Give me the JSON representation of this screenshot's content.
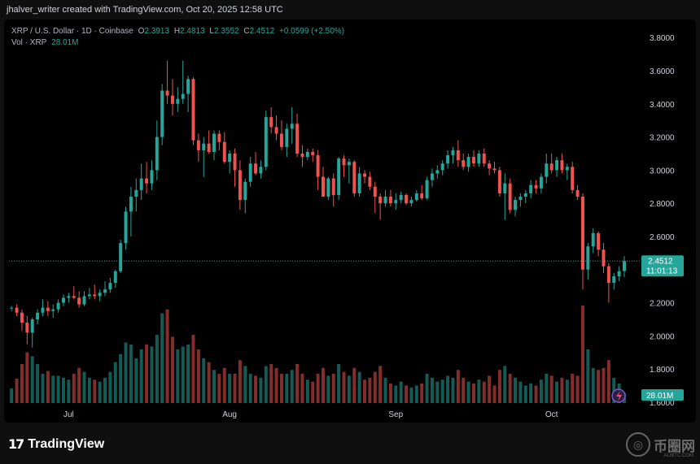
{
  "header": {
    "creator_text": "jhalver_writer created with TradingView.com, Oct 20, 2025 12:58 UTC"
  },
  "legend": {
    "symbol": "XRP / U.S. Dollar · 1D · Coinbase",
    "open_label": "O",
    "open": "2.3913",
    "high_label": "H",
    "high": "2.4813",
    "low_label": "L",
    "low": "2.3552",
    "close_label": "C",
    "close": "2.4512",
    "change": "+0.0599 (+2.50%)",
    "vol_label": "Vol · XRP",
    "vol_value": "28.01M"
  },
  "price_tag": {
    "price": "2.4512",
    "countdown": "11:01:13"
  },
  "volume_tag": "28.01M",
  "footer": {
    "logo_text": "TradingView",
    "watermark": "币圈网",
    "watermark_sub": "ALIBTC.COM"
  },
  "colors": {
    "up": "#26a69a",
    "down": "#ef5350",
    "background": "#000000",
    "text": "#d1d4dc"
  },
  "icons": {
    "logo": "tradingview-logo-icon",
    "event": "lightning-event-icon",
    "watermark": "watermark-logo-icon"
  },
  "chart_data": {
    "type": "candlestick",
    "title": "XRP / U.S. Dollar · 1D · Coinbase",
    "y_axis": {
      "ticks": [
        "3.8000",
        "3.6000",
        "3.4000",
        "3.2000",
        "3.0000",
        "2.8000",
        "2.6000",
        "2.4000",
        "2.2000",
        "2.0000",
        "1.8000",
        "1.6000"
      ],
      "range": [
        1.58,
        3.86
      ],
      "position": "right"
    },
    "x_axis": {
      "ticks": [
        {
          "label": "Jul",
          "index": 11
        },
        {
          "label": "Aug",
          "index": 42
        },
        {
          "label": "Sep",
          "index": 74
        },
        {
          "label": "Oct",
          "index": 104
        }
      ]
    },
    "grid": false,
    "current_price_line": 2.4512,
    "candles": [
      {
        "o": 2.17,
        "h": 2.18,
        "l": 2.15,
        "c": 2.17,
        "v": 0.15
      },
      {
        "o": 2.17,
        "h": 2.19,
        "l": 2.12,
        "c": 2.14,
        "v": 0.25
      },
      {
        "o": 2.14,
        "h": 2.16,
        "l": 2.03,
        "c": 2.08,
        "v": 0.4
      },
      {
        "o": 2.08,
        "h": 2.12,
        "l": 1.95,
        "c": 2.02,
        "v": 0.52
      },
      {
        "o": 2.02,
        "h": 2.11,
        "l": 1.93,
        "c": 2.1,
        "v": 0.48
      },
      {
        "o": 2.1,
        "h": 2.16,
        "l": 2.07,
        "c": 2.14,
        "v": 0.4
      },
      {
        "o": 2.14,
        "h": 2.22,
        "l": 2.12,
        "c": 2.17,
        "v": 0.3
      },
      {
        "o": 2.17,
        "h": 2.21,
        "l": 2.12,
        "c": 2.15,
        "v": 0.33
      },
      {
        "o": 2.15,
        "h": 2.19,
        "l": 2.11,
        "c": 2.16,
        "v": 0.28
      },
      {
        "o": 2.16,
        "h": 2.22,
        "l": 2.14,
        "c": 2.2,
        "v": 0.28
      },
      {
        "o": 2.2,
        "h": 2.25,
        "l": 2.18,
        "c": 2.23,
        "v": 0.26
      },
      {
        "o": 2.23,
        "h": 2.26,
        "l": 2.2,
        "c": 2.24,
        "v": 0.24
      },
      {
        "o": 2.24,
        "h": 2.3,
        "l": 2.22,
        "c": 2.23,
        "v": 0.3
      },
      {
        "o": 2.23,
        "h": 2.27,
        "l": 2.17,
        "c": 2.19,
        "v": 0.36
      },
      {
        "o": 2.19,
        "h": 2.27,
        "l": 2.18,
        "c": 2.24,
        "v": 0.32
      },
      {
        "o": 2.24,
        "h": 2.29,
        "l": 2.22,
        "c": 2.25,
        "v": 0.26
      },
      {
        "o": 2.25,
        "h": 2.31,
        "l": 2.22,
        "c": 2.24,
        "v": 0.24
      },
      {
        "o": 2.24,
        "h": 2.28,
        "l": 2.21,
        "c": 2.26,
        "v": 0.22
      },
      {
        "o": 2.26,
        "h": 2.33,
        "l": 2.24,
        "c": 2.28,
        "v": 0.26
      },
      {
        "o": 2.28,
        "h": 2.35,
        "l": 2.26,
        "c": 2.32,
        "v": 0.32
      },
      {
        "o": 2.32,
        "h": 2.4,
        "l": 2.29,
        "c": 2.39,
        "v": 0.42
      },
      {
        "o": 2.39,
        "h": 2.58,
        "l": 2.38,
        "c": 2.56,
        "v": 0.5
      },
      {
        "o": 2.56,
        "h": 2.78,
        "l": 2.52,
        "c": 2.75,
        "v": 0.62
      },
      {
        "o": 2.75,
        "h": 2.9,
        "l": 2.6,
        "c": 2.84,
        "v": 0.6
      },
      {
        "o": 2.84,
        "h": 2.95,
        "l": 2.75,
        "c": 2.88,
        "v": 0.46
      },
      {
        "o": 2.88,
        "h": 3.04,
        "l": 2.82,
        "c": 2.95,
        "v": 0.55
      },
      {
        "o": 2.95,
        "h": 3.05,
        "l": 2.86,
        "c": 2.92,
        "v": 0.6
      },
      {
        "o": 2.92,
        "h": 3.06,
        "l": 2.88,
        "c": 3.0,
        "v": 0.58
      },
      {
        "o": 3.0,
        "h": 3.3,
        "l": 2.94,
        "c": 3.2,
        "v": 0.7
      },
      {
        "o": 3.2,
        "h": 3.52,
        "l": 3.15,
        "c": 3.48,
        "v": 0.92
      },
      {
        "o": 3.48,
        "h": 3.66,
        "l": 3.4,
        "c": 3.45,
        "v": 0.96
      },
      {
        "o": 3.45,
        "h": 3.55,
        "l": 3.33,
        "c": 3.4,
        "v": 0.68
      },
      {
        "o": 3.4,
        "h": 3.5,
        "l": 3.35,
        "c": 3.43,
        "v": 0.55
      },
      {
        "o": 3.43,
        "h": 3.66,
        "l": 3.4,
        "c": 3.46,
        "v": 0.58
      },
      {
        "o": 3.46,
        "h": 3.57,
        "l": 3.35,
        "c": 3.55,
        "v": 0.6
      },
      {
        "o": 3.55,
        "h": 3.56,
        "l": 3.15,
        "c": 3.18,
        "v": 0.7
      },
      {
        "o": 3.18,
        "h": 3.22,
        "l": 3.05,
        "c": 3.12,
        "v": 0.55
      },
      {
        "o": 3.12,
        "h": 3.2,
        "l": 2.96,
        "c": 3.16,
        "v": 0.46
      },
      {
        "o": 3.16,
        "h": 3.24,
        "l": 3.1,
        "c": 3.11,
        "v": 0.42
      },
      {
        "o": 3.11,
        "h": 3.24,
        "l": 3.06,
        "c": 3.22,
        "v": 0.34
      },
      {
        "o": 3.22,
        "h": 3.24,
        "l": 3.12,
        "c": 3.17,
        "v": 0.3
      },
      {
        "o": 3.17,
        "h": 3.23,
        "l": 3.04,
        "c": 3.05,
        "v": 0.36
      },
      {
        "o": 3.05,
        "h": 3.12,
        "l": 2.98,
        "c": 3.1,
        "v": 0.3
      },
      {
        "o": 3.1,
        "h": 3.13,
        "l": 2.9,
        "c": 3.0,
        "v": 0.3
      },
      {
        "o": 3.0,
        "h": 3.06,
        "l": 2.76,
        "c": 2.82,
        "v": 0.44
      },
      {
        "o": 2.82,
        "h": 2.95,
        "l": 2.74,
        "c": 2.93,
        "v": 0.38
      },
      {
        "o": 2.93,
        "h": 3.08,
        "l": 2.9,
        "c": 3.04,
        "v": 0.3
      },
      {
        "o": 3.04,
        "h": 3.11,
        "l": 2.97,
        "c": 2.98,
        "v": 0.28
      },
      {
        "o": 2.98,
        "h": 3.06,
        "l": 2.95,
        "c": 3.02,
        "v": 0.26
      },
      {
        "o": 3.02,
        "h": 3.36,
        "l": 3.0,
        "c": 3.32,
        "v": 0.38
      },
      {
        "o": 3.32,
        "h": 3.38,
        "l": 3.22,
        "c": 3.26,
        "v": 0.4
      },
      {
        "o": 3.26,
        "h": 3.33,
        "l": 3.18,
        "c": 3.22,
        "v": 0.36
      },
      {
        "o": 3.22,
        "h": 3.3,
        "l": 3.12,
        "c": 3.14,
        "v": 0.3
      },
      {
        "o": 3.14,
        "h": 3.28,
        "l": 3.08,
        "c": 3.25,
        "v": 0.3
      },
      {
        "o": 3.25,
        "h": 3.38,
        "l": 3.16,
        "c": 3.28,
        "v": 0.34
      },
      {
        "o": 3.28,
        "h": 3.34,
        "l": 3.08,
        "c": 3.1,
        "v": 0.4
      },
      {
        "o": 3.1,
        "h": 3.15,
        "l": 3.02,
        "c": 3.08,
        "v": 0.3
      },
      {
        "o": 3.08,
        "h": 3.13,
        "l": 3.06,
        "c": 3.11,
        "v": 0.24
      },
      {
        "o": 3.11,
        "h": 3.13,
        "l": 3.05,
        "c": 3.09,
        "v": 0.22
      },
      {
        "o": 3.09,
        "h": 3.12,
        "l": 2.88,
        "c": 2.96,
        "v": 0.3
      },
      {
        "o": 2.96,
        "h": 3.02,
        "l": 2.84,
        "c": 2.84,
        "v": 0.36
      },
      {
        "o": 2.84,
        "h": 2.96,
        "l": 2.82,
        "c": 2.95,
        "v": 0.28
      },
      {
        "o": 2.95,
        "h": 2.98,
        "l": 2.78,
        "c": 2.85,
        "v": 0.3
      },
      {
        "o": 2.85,
        "h": 3.08,
        "l": 2.82,
        "c": 3.07,
        "v": 0.4
      },
      {
        "o": 3.07,
        "h": 3.09,
        "l": 2.96,
        "c": 3.03,
        "v": 0.32
      },
      {
        "o": 3.03,
        "h": 3.07,
        "l": 2.92,
        "c": 3.05,
        "v": 0.28
      },
      {
        "o": 3.05,
        "h": 3.06,
        "l": 2.84,
        "c": 2.86,
        "v": 0.36
      },
      {
        "o": 2.86,
        "h": 3.02,
        "l": 2.84,
        "c": 2.98,
        "v": 0.32
      },
      {
        "o": 2.98,
        "h": 3.0,
        "l": 2.92,
        "c": 2.96,
        "v": 0.24
      },
      {
        "o": 2.96,
        "h": 2.99,
        "l": 2.88,
        "c": 2.9,
        "v": 0.26
      },
      {
        "o": 2.9,
        "h": 2.93,
        "l": 2.74,
        "c": 2.84,
        "v": 0.32
      },
      {
        "o": 2.84,
        "h": 2.86,
        "l": 2.7,
        "c": 2.8,
        "v": 0.38
      },
      {
        "o": 2.8,
        "h": 2.88,
        "l": 2.78,
        "c": 2.84,
        "v": 0.26
      },
      {
        "o": 2.84,
        "h": 2.88,
        "l": 2.78,
        "c": 2.8,
        "v": 0.2
      },
      {
        "o": 2.8,
        "h": 2.86,
        "l": 2.76,
        "c": 2.82,
        "v": 0.18
      },
      {
        "o": 2.82,
        "h": 2.87,
        "l": 2.8,
        "c": 2.85,
        "v": 0.22
      },
      {
        "o": 2.85,
        "h": 2.86,
        "l": 2.79,
        "c": 2.8,
        "v": 0.18
      },
      {
        "o": 2.8,
        "h": 2.84,
        "l": 2.78,
        "c": 2.82,
        "v": 0.16
      },
      {
        "o": 2.82,
        "h": 2.88,
        "l": 2.81,
        "c": 2.86,
        "v": 0.18
      },
      {
        "o": 2.86,
        "h": 2.91,
        "l": 2.82,
        "c": 2.83,
        "v": 0.2
      },
      {
        "o": 2.83,
        "h": 2.96,
        "l": 2.82,
        "c": 2.94,
        "v": 0.3
      },
      {
        "o": 2.94,
        "h": 3.01,
        "l": 2.9,
        "c": 2.98,
        "v": 0.26
      },
      {
        "o": 2.98,
        "h": 3.03,
        "l": 2.95,
        "c": 3.0,
        "v": 0.22
      },
      {
        "o": 3.0,
        "h": 3.06,
        "l": 2.97,
        "c": 3.04,
        "v": 0.24
      },
      {
        "o": 3.04,
        "h": 3.12,
        "l": 3.01,
        "c": 3.09,
        "v": 0.28
      },
      {
        "o": 3.09,
        "h": 3.14,
        "l": 3.04,
        "c": 3.12,
        "v": 0.26
      },
      {
        "o": 3.12,
        "h": 3.18,
        "l": 3.02,
        "c": 3.06,
        "v": 0.34
      },
      {
        "o": 3.06,
        "h": 3.1,
        "l": 3.0,
        "c": 3.02,
        "v": 0.26
      },
      {
        "o": 3.02,
        "h": 3.1,
        "l": 2.99,
        "c": 3.08,
        "v": 0.22
      },
      {
        "o": 3.08,
        "h": 3.12,
        "l": 3.02,
        "c": 3.04,
        "v": 0.2
      },
      {
        "o": 3.04,
        "h": 3.12,
        "l": 3.02,
        "c": 3.1,
        "v": 0.24
      },
      {
        "o": 3.1,
        "h": 3.13,
        "l": 3.02,
        "c": 3.04,
        "v": 0.22
      },
      {
        "o": 3.04,
        "h": 3.06,
        "l": 2.97,
        "c": 3.01,
        "v": 0.28
      },
      {
        "o": 3.01,
        "h": 3.05,
        "l": 2.98,
        "c": 3.0,
        "v": 0.18
      },
      {
        "o": 3.0,
        "h": 3.02,
        "l": 2.84,
        "c": 2.86,
        "v": 0.34
      },
      {
        "o": 2.86,
        "h": 2.98,
        "l": 2.7,
        "c": 2.92,
        "v": 0.38
      },
      {
        "o": 2.92,
        "h": 2.95,
        "l": 2.74,
        "c": 2.76,
        "v": 0.3
      },
      {
        "o": 2.76,
        "h": 2.84,
        "l": 2.72,
        "c": 2.82,
        "v": 0.26
      },
      {
        "o": 2.82,
        "h": 2.86,
        "l": 2.78,
        "c": 2.84,
        "v": 0.22
      },
      {
        "o": 2.84,
        "h": 2.88,
        "l": 2.8,
        "c": 2.86,
        "v": 0.18
      },
      {
        "o": 2.86,
        "h": 2.94,
        "l": 2.83,
        "c": 2.91,
        "v": 0.2
      },
      {
        "o": 2.91,
        "h": 2.94,
        "l": 2.86,
        "c": 2.89,
        "v": 0.18
      },
      {
        "o": 2.89,
        "h": 2.98,
        "l": 2.86,
        "c": 2.96,
        "v": 0.24
      },
      {
        "o": 2.96,
        "h": 3.1,
        "l": 2.92,
        "c": 3.04,
        "v": 0.3
      },
      {
        "o": 3.04,
        "h": 3.1,
        "l": 2.98,
        "c": 3.0,
        "v": 0.28
      },
      {
        "o": 3.0,
        "h": 3.08,
        "l": 2.96,
        "c": 3.06,
        "v": 0.22
      },
      {
        "o": 3.06,
        "h": 3.1,
        "l": 2.98,
        "c": 3.0,
        "v": 0.26
      },
      {
        "o": 3.0,
        "h": 3.04,
        "l": 2.94,
        "c": 3.02,
        "v": 0.24
      },
      {
        "o": 3.02,
        "h": 3.05,
        "l": 2.86,
        "c": 2.88,
        "v": 0.3
      },
      {
        "o": 2.88,
        "h": 2.91,
        "l": 2.82,
        "c": 2.84,
        "v": 0.28
      },
      {
        "o": 2.84,
        "h": 2.86,
        "l": 2.28,
        "c": 2.4,
        "v": 1.0
      },
      {
        "o": 2.4,
        "h": 2.56,
        "l": 2.34,
        "c": 2.54,
        "v": 0.55
      },
      {
        "o": 2.54,
        "h": 2.65,
        "l": 2.5,
        "c": 2.62,
        "v": 0.36
      },
      {
        "o": 2.62,
        "h": 2.63,
        "l": 2.48,
        "c": 2.52,
        "v": 0.34
      },
      {
        "o": 2.52,
        "h": 2.56,
        "l": 2.38,
        "c": 2.42,
        "v": 0.36
      },
      {
        "o": 2.42,
        "h": 2.44,
        "l": 2.2,
        "c": 2.32,
        "v": 0.44
      },
      {
        "o": 2.32,
        "h": 2.38,
        "l": 2.28,
        "c": 2.36,
        "v": 0.26
      },
      {
        "o": 2.36,
        "h": 2.42,
        "l": 2.33,
        "c": 2.39,
        "v": 0.2
      },
      {
        "o": 2.3913,
        "h": 2.4813,
        "l": 2.3552,
        "c": 2.4512,
        "v": 0.1
      }
    ]
  }
}
